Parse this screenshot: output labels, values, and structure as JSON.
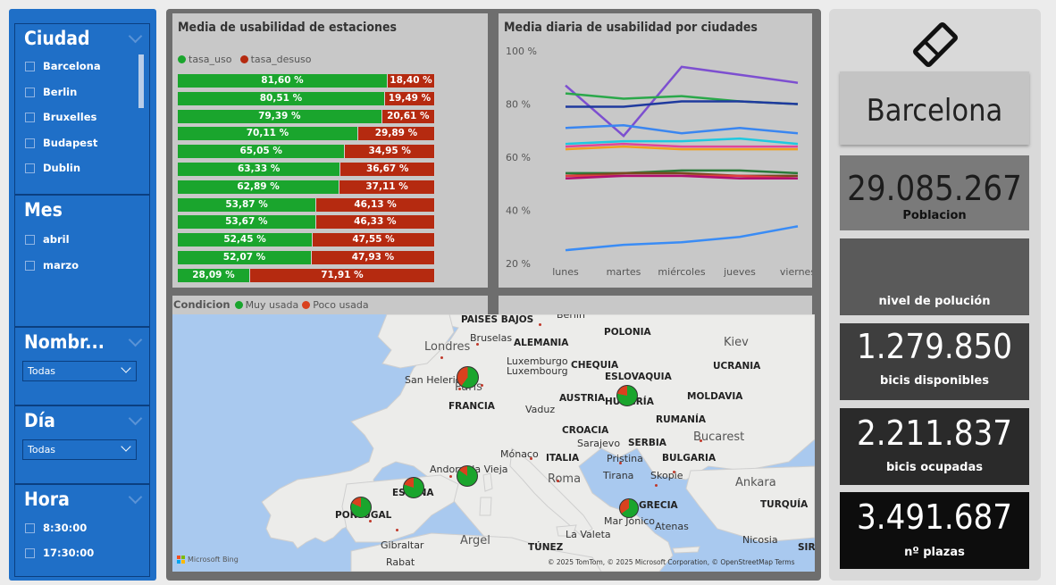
{
  "slicers": {
    "ciudad": {
      "title": "Ciudad",
      "options": [
        "Barcelona",
        "Berlin",
        "Bruxelles",
        "Budapest",
        "Dublin"
      ]
    },
    "mes": {
      "title": "Mes",
      "options": [
        "abril",
        "marzo"
      ]
    },
    "nombre": {
      "title": "Nombr...",
      "selected": "Todas"
    },
    "dia": {
      "title": "Día",
      "selected": "Todas"
    },
    "hora": {
      "title": "Hora",
      "options": [
        "8:30:00",
        "17:30:00"
      ]
    }
  },
  "bar_card": {
    "title": "Media de usabilidad de estaciones",
    "legend": [
      {
        "name": "tasa_uso",
        "color": "#1aa52d"
      },
      {
        "name": "tasa_desuso",
        "color": "#b52a10"
      }
    ]
  },
  "line_card": {
    "title": "Media diaria de usabilidad por ciudades"
  },
  "map_card": {
    "legend_title": "Condicion",
    "legend": [
      {
        "name": "Muy usada",
        "color": "#1aa52d"
      },
      {
        "name": "Poco usada",
        "color": "#d9411e"
      }
    ],
    "attribution": "© 2025 TomTom, © 2025 Microsoft Corporation, © OpenStreetMap Terms",
    "bing_label": "Microsoft Bing",
    "labels": [
      {
        "text": "PAÍSES BAJOS",
        "kind": "b"
      },
      {
        "text": "Berlín",
        "kind": "n"
      },
      {
        "text": "Londres",
        "kind": "big"
      },
      {
        "text": "Bruselas",
        "kind": "n"
      },
      {
        "text": "ALEMANIA",
        "kind": "b"
      },
      {
        "text": "POLONIA",
        "kind": "b"
      },
      {
        "text": "Kiev",
        "kind": "big"
      },
      {
        "text": "Luxemburgo",
        "kind": "n"
      },
      {
        "text": "Luxembourg",
        "kind": "n"
      },
      {
        "text": "CHEQUIA",
        "kind": "b"
      },
      {
        "text": "UCRANIA",
        "kind": "b"
      },
      {
        "text": "ESLOVAQUIA",
        "kind": "b"
      },
      {
        "text": "San Helerio",
        "kind": "n"
      },
      {
        "text": "París",
        "kind": "big"
      },
      {
        "text": "AUSTRIA",
        "kind": "b"
      },
      {
        "text": "HUNGRÍA",
        "kind": "b"
      },
      {
        "text": "MOLDAVIA",
        "kind": "b"
      },
      {
        "text": "FRANCIA",
        "kind": "b"
      },
      {
        "text": "Vaduz",
        "kind": "n"
      },
      {
        "text": "RUMANÍA",
        "kind": "b"
      },
      {
        "text": "CROACIA",
        "kind": "b"
      },
      {
        "text": "Bucarest",
        "kind": "big"
      },
      {
        "text": "Sarajevo",
        "kind": "n"
      },
      {
        "text": "SERBIA",
        "kind": "b"
      },
      {
        "text": "Mónaco",
        "kind": "n"
      },
      {
        "text": "ITALIA",
        "kind": "b"
      },
      {
        "text": "Pristina",
        "kind": "n"
      },
      {
        "text": "BULGARIA",
        "kind": "b"
      },
      {
        "text": "Andorra la Vieja",
        "kind": "n"
      },
      {
        "text": "Roma",
        "kind": "big"
      },
      {
        "text": "Tirana",
        "kind": "n"
      },
      {
        "text": "Skopie",
        "kind": "n"
      },
      {
        "text": "Ankara",
        "kind": "big"
      },
      {
        "text": "ESPAÑA",
        "kind": "b"
      },
      {
        "text": "TURQUÍA",
        "kind": "b"
      },
      {
        "text": "PORTUGAL",
        "kind": "b"
      },
      {
        "text": "GRECIA",
        "kind": "b"
      },
      {
        "text": "Mar Jónico",
        "kind": "n"
      },
      {
        "text": "Atenas",
        "kind": "n"
      },
      {
        "text": "Gibraltar",
        "kind": "n"
      },
      {
        "text": "Argel",
        "kind": "big"
      },
      {
        "text": "La Valeta",
        "kind": "n"
      },
      {
        "text": "Nicosia",
        "kind": "n"
      },
      {
        "text": "TÚNEZ",
        "kind": "b"
      },
      {
        "text": "Rabat",
        "kind": "n"
      },
      {
        "text": "SIRIA",
        "kind": "b"
      }
    ]
  },
  "kpis": {
    "city": "Barcelona",
    "poblacion": {
      "value": "29.085.267",
      "label": "Poblacion"
    },
    "polucion": {
      "value": "",
      "label": "nivel de polución"
    },
    "bicis_disponibles": {
      "value": "1.279.850",
      "label": "bicis disponibles"
    },
    "bicis_ocupadas": {
      "value": "2.211.837",
      "label": "bicis ocupadas"
    },
    "plazas": {
      "value": "3.491.687",
      "label": "nº plazas"
    }
  },
  "chart_data": [
    {
      "type": "bar",
      "title": "Media de usabilidad de estaciones",
      "stacked": true,
      "orientation": "horizontal",
      "series": [
        {
          "name": "tasa_uso",
          "values": [
            81.6,
            80.51,
            79.39,
            70.11,
            65.05,
            63.33,
            62.89,
            53.87,
            53.67,
            52.45,
            52.07,
            28.09
          ]
        },
        {
          "name": "tasa_desuso",
          "values": [
            18.4,
            19.49,
            20.61,
            29.89,
            34.95,
            36.67,
            37.11,
            46.13,
            46.33,
            47.55,
            47.93,
            71.91
          ]
        }
      ],
      "labels_uso": [
        "81,60 %",
        "80,51 %",
        "79,39 %",
        "70,11 %",
        "65,05 %",
        "63,33 %",
        "62,89 %",
        "53,87 %",
        "53,67 %",
        "52,45 %",
        "52,07 %",
        "28,09 %"
      ],
      "labels_desuso": [
        "18,40 %",
        "19,49 %",
        "20,61 %",
        "29,89 %",
        "34,95 %",
        "36,67 %",
        "37,11 %",
        "46,13 %",
        "46,33 %",
        "47,55 %",
        "47,93 %",
        "71,91 %"
      ],
      "colors": {
        "tasa_uso": "#1aa52d",
        "tasa_desuso": "#b52a10"
      }
    },
    {
      "type": "line",
      "title": "Media diaria de usabilidad por ciudades",
      "categories": [
        "lunes",
        "martes",
        "miércoles",
        "jueves",
        "viernes"
      ],
      "yticks": [
        "100 %",
        "80 %",
        "60 %",
        "40 %",
        "20 %"
      ],
      "ylim": [
        20,
        100
      ],
      "series": [
        {
          "color": "#7d4fd0",
          "values": [
            87,
            68,
            94,
            91,
            88
          ]
        },
        {
          "color": "#2aa84a",
          "values": [
            84,
            82,
            83,
            81,
            80
          ]
        },
        {
          "color": "#1f3a9e",
          "values": [
            79,
            79,
            81,
            81,
            80
          ]
        },
        {
          "color": "#3a86f0",
          "values": [
            71,
            72,
            69,
            71,
            69
          ]
        },
        {
          "color": "#1ec8e0",
          "values": [
            65,
            66,
            66,
            67,
            65
          ]
        },
        {
          "color": "#e0469a",
          "values": [
            64,
            65,
            64,
            64,
            64
          ]
        },
        {
          "color": "#f0a020",
          "values": [
            63,
            64,
            63,
            63,
            63
          ]
        },
        {
          "color": "#2b7a3a",
          "values": [
            54,
            54,
            55,
            55,
            54
          ]
        },
        {
          "color": "#7a4a20",
          "values": [
            53,
            54,
            54,
            53,
            53
          ]
        },
        {
          "color": "#e04040",
          "values": [
            53,
            53,
            53,
            53,
            52
          ]
        },
        {
          "color": "#b01070",
          "values": [
            52,
            53,
            53,
            52,
            52
          ]
        },
        {
          "color": "#3a8cf5",
          "values": [
            25,
            27,
            28,
            30,
            34
          ]
        }
      ]
    },
    {
      "type": "pie",
      "title": "",
      "series": [
        {
          "name": "Muy usada",
          "values": [
            60,
            78,
            80,
            85,
            82,
            65
          ]
        },
        {
          "name": "Poco usada",
          "values": [
            40,
            22,
            20,
            15,
            18,
            35
          ]
        }
      ]
    }
  ]
}
